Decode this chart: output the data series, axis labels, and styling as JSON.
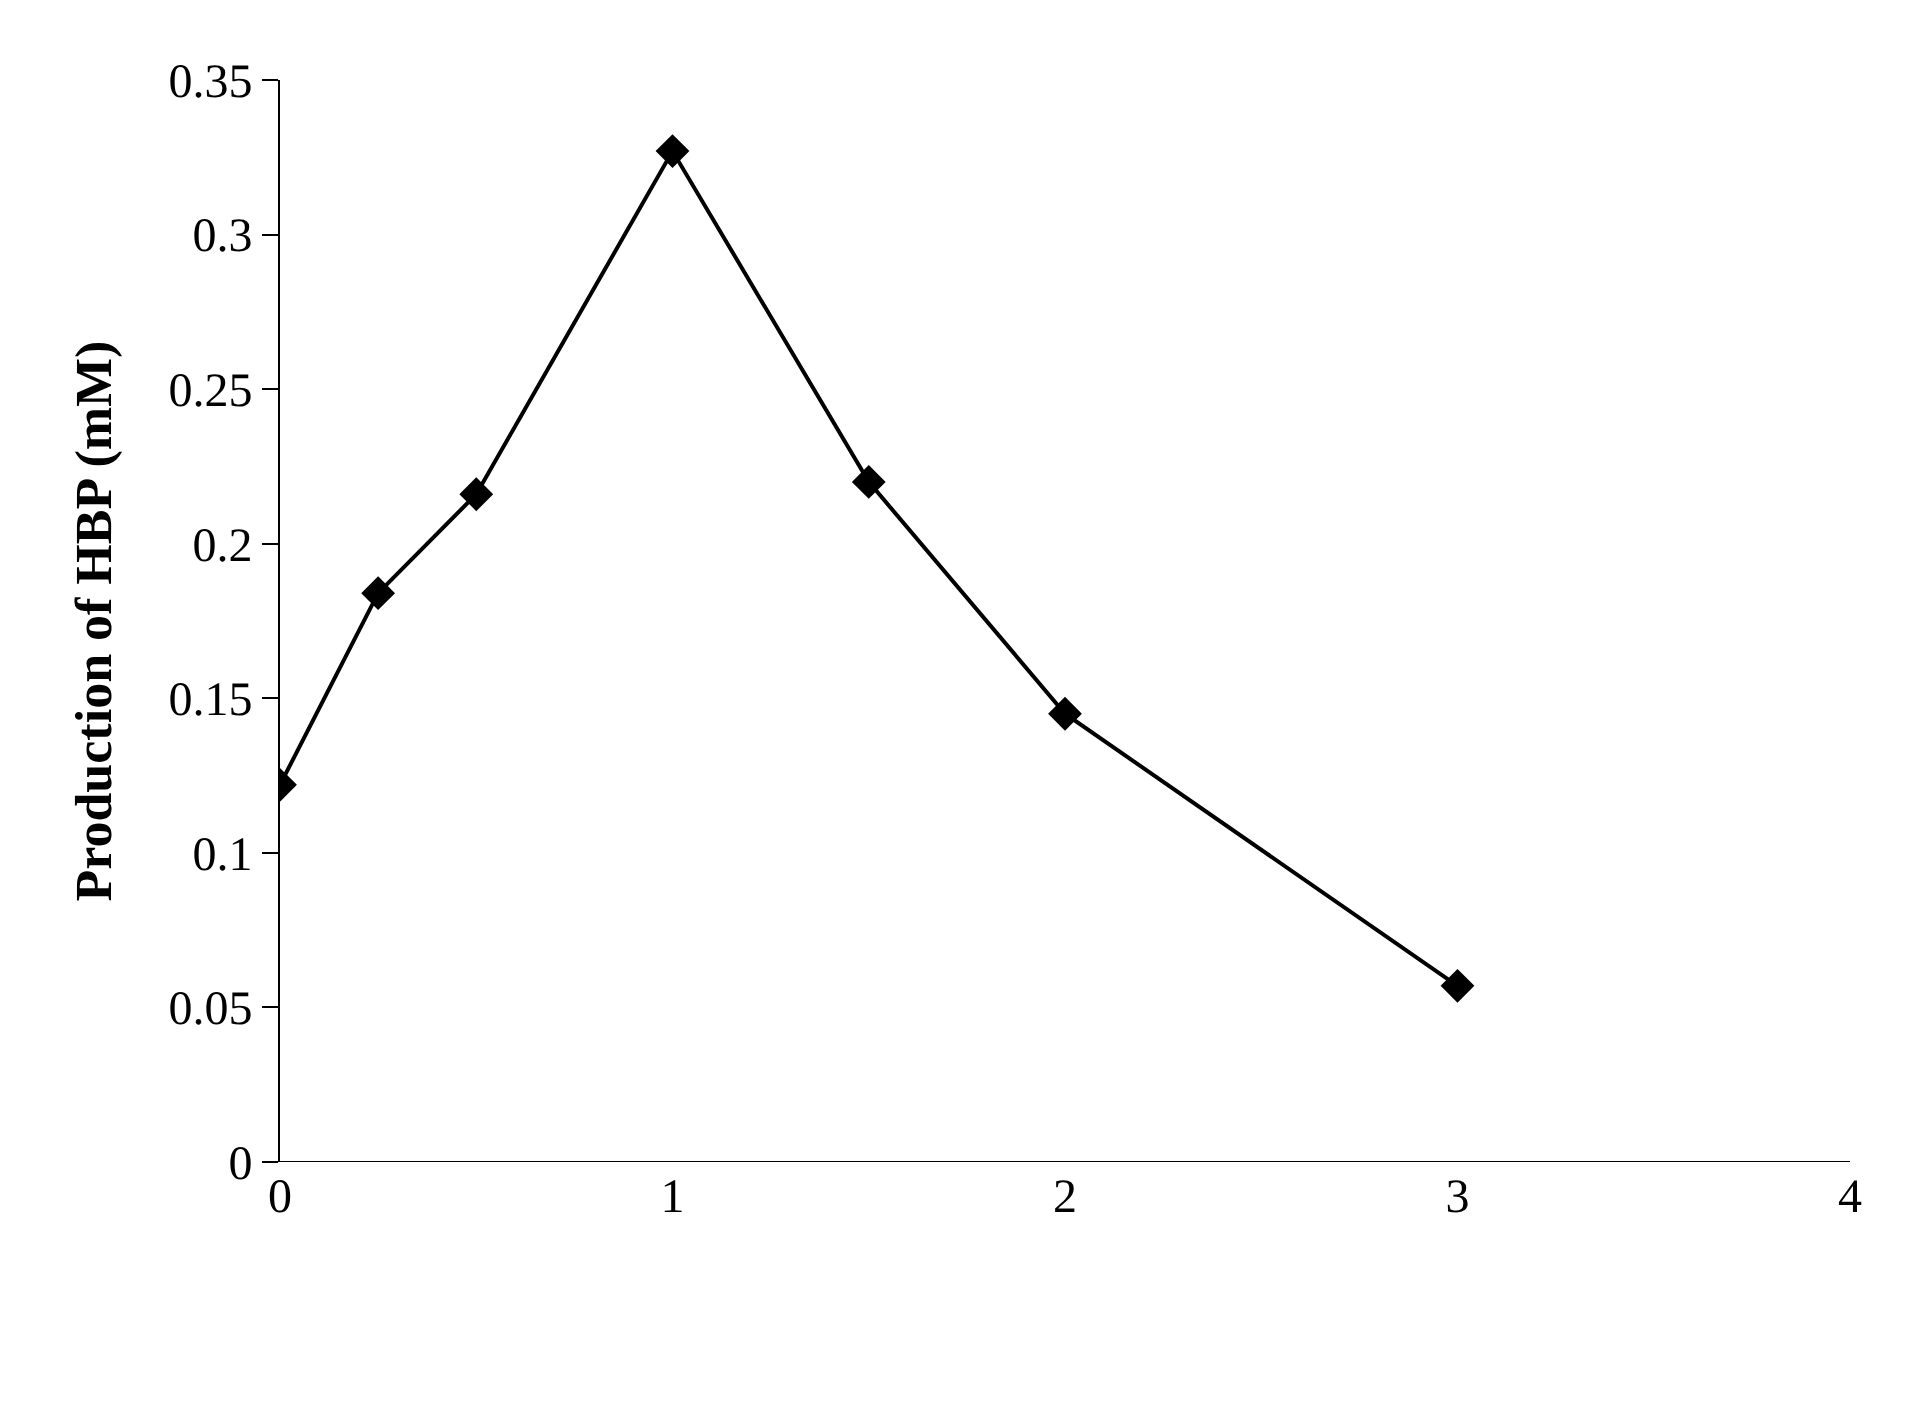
{
  "chart_data": {
    "type": "line",
    "ylabel": "Production of HBP (mM)",
    "x": [
      0,
      0.25,
      0.5,
      1,
      1.5,
      2,
      3
    ],
    "series": [
      {
        "color": "#000000",
        "values": [
          0.122,
          0.184,
          0.216,
          0.327,
          0.22,
          0.145,
          0.057
        ]
      }
    ],
    "xlim": [
      0,
      4
    ],
    "xticks": [
      0,
      1,
      2,
      3,
      4
    ],
    "ylim": [
      0,
      0.35
    ],
    "yticks": [
      0,
      0.05,
      0.1,
      0.15,
      0.2,
      0.25,
      0.3,
      0.35
    ],
    "marker": "diamond",
    "line_style": "solid"
  }
}
